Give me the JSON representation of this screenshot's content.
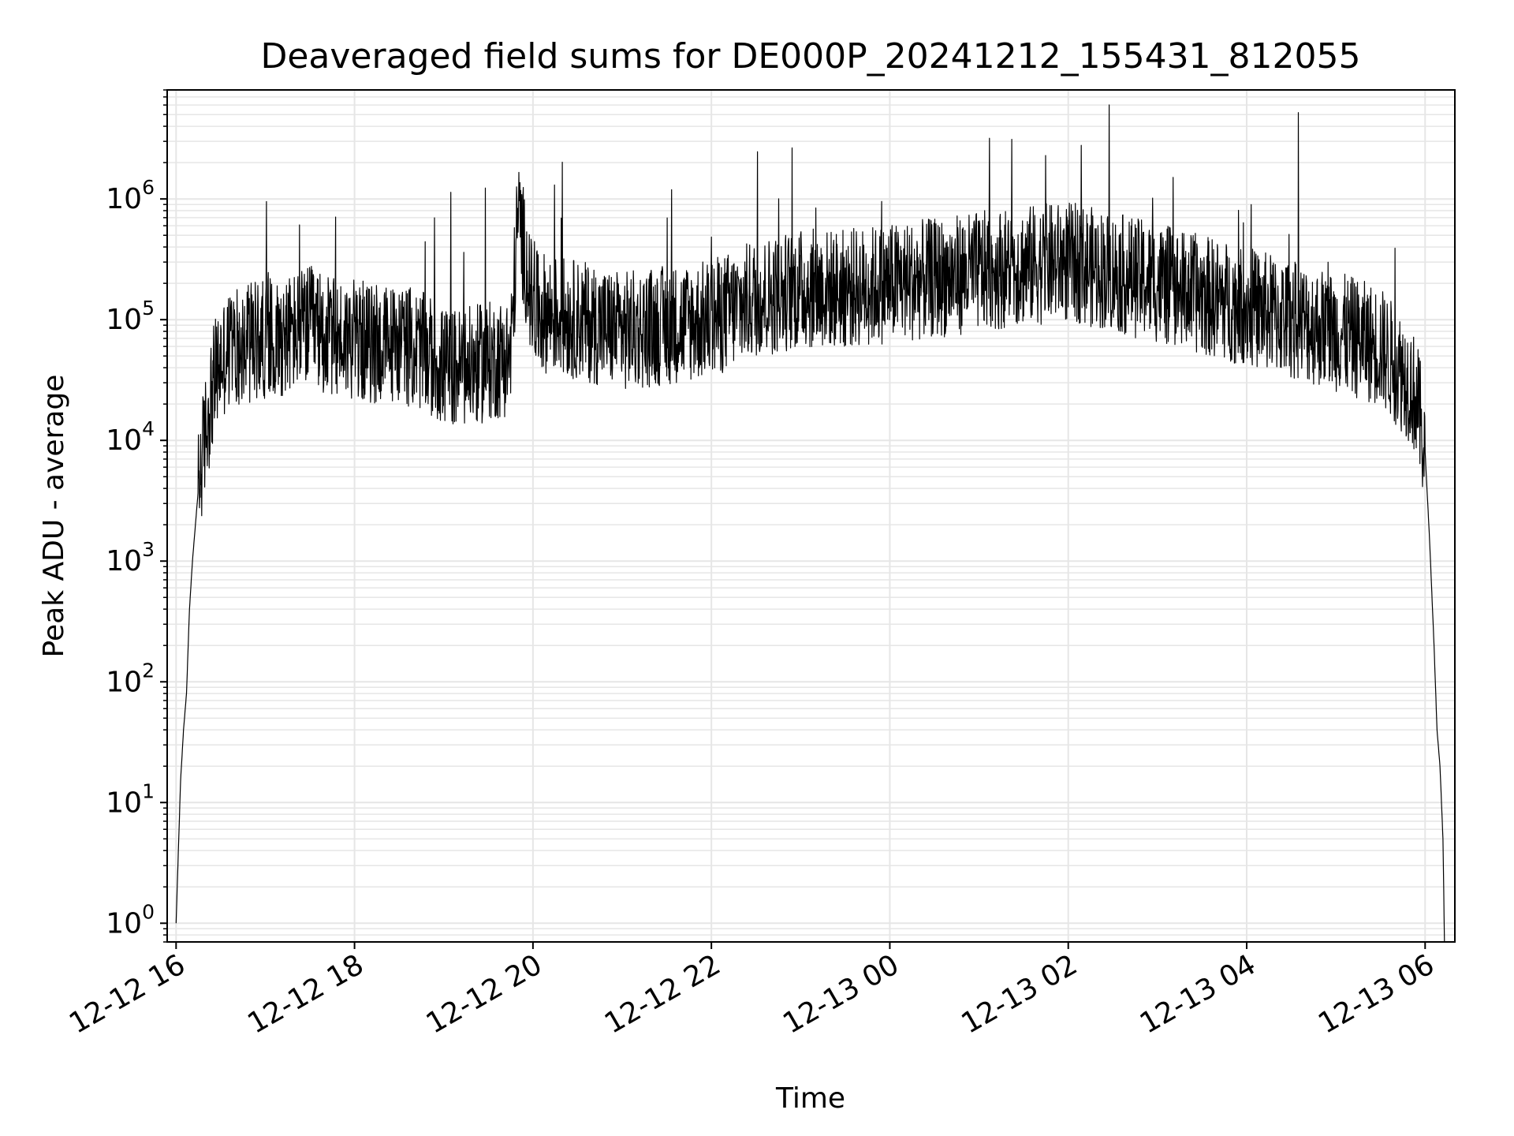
{
  "chart_data": {
    "type": "line",
    "title": "Deaveraged field sums for DE000P_20241212_155431_812055",
    "xlabel": "Time",
    "ylabel": "Peak ADU - average",
    "yscale": "log",
    "ylim": [
      0.7,
      8000000
    ],
    "xlim": [
      "2024-12-12 15:54",
      "2024-12-13 06:20"
    ],
    "grid": true,
    "line_color": "#000000",
    "grid_color": "#e6e6e6",
    "x_ticks": [
      {
        "t": "2024-12-12 16:00",
        "label": "12-12 16"
      },
      {
        "t": "2024-12-12 18:00",
        "label": "12-12 18"
      },
      {
        "t": "2024-12-12 20:00",
        "label": "12-12 20"
      },
      {
        "t": "2024-12-12 22:00",
        "label": "12-12 22"
      },
      {
        "t": "2024-12-13 00:00",
        "label": "12-13 00"
      },
      {
        "t": "2024-12-13 02:00",
        "label": "12-13 02"
      },
      {
        "t": "2024-12-13 04:00",
        "label": "12-13 04"
      },
      {
        "t": "2024-12-13 06:00",
        "label": "12-13 06"
      }
    ],
    "y_ticks": [
      {
        "value": 1,
        "base": "10",
        "exp": "0"
      },
      {
        "value": 10,
        "base": "10",
        "exp": "1"
      },
      {
        "value": 100,
        "base": "10",
        "exp": "2"
      },
      {
        "value": 1000,
        "base": "10",
        "exp": "3"
      },
      {
        "value": 10000,
        "base": "10",
        "exp": "4"
      },
      {
        "value": 100000,
        "base": "10",
        "exp": "5"
      },
      {
        "value": 1000000,
        "base": "10",
        "exp": "6"
      }
    ],
    "series": [
      {
        "x": [
          "2024-12-12 16:00",
          "2024-12-12 16:03",
          "2024-12-12 16:05",
          "2024-12-12 16:07",
          "2024-12-12 16:09",
          "2024-12-12 16:11",
          "2024-12-12 16:13",
          "2024-12-12 16:15",
          "2024-12-12 16:18",
          "2024-12-12 16:21",
          "2024-12-12 16:24",
          "2024-12-12 16:27",
          "2024-12-12 16:30",
          "2024-12-12 16:35",
          "2024-12-12 16:40",
          "2024-12-12 16:50",
          "2024-12-12 17:00",
          "2024-12-12 17:15",
          "2024-12-12 17:30",
          "2024-12-12 17:45",
          "2024-12-12 18:00",
          "2024-12-12 18:15",
          "2024-12-12 18:30",
          "2024-12-12 18:45",
          "2024-12-12 19:00",
          "2024-12-12 19:15",
          "2024-12-12 19:30",
          "2024-12-12 19:45",
          "2024-12-12 19:50",
          "2024-12-12 20:00",
          "2024-12-12 20:30",
          "2024-12-12 21:00",
          "2024-12-12 21:30",
          "2024-12-12 22:00",
          "2024-12-12 22:30",
          "2024-12-12 23:00",
          "2024-12-12 23:30",
          "2024-12-13 00:00",
          "2024-12-13 00:30",
          "2024-12-13 01:00",
          "2024-12-13 01:30",
          "2024-12-13 02:00",
          "2024-12-13 02:30",
          "2024-12-13 03:00",
          "2024-12-13 03:30",
          "2024-12-13 04:00",
          "2024-12-13 04:30",
          "2024-12-13 05:00",
          "2024-12-13 05:30",
          "2024-12-13 05:50",
          "2024-12-13 05:55",
          "2024-12-13 06:00",
          "2024-12-13 06:03",
          "2024-12-13 06:06",
          "2024-12-13 06:08",
          "2024-12-13 06:10",
          "2024-12-13 06:12",
          "2024-12-13 06:13"
        ],
        "y": [
          1,
          15,
          40,
          80,
          400,
          1000,
          2000,
          4000,
          8000,
          15000,
          25000,
          35000,
          45000,
          55000,
          60000,
          65000,
          70000,
          75000,
          90000,
          70000,
          70000,
          60000,
          65000,
          55000,
          40000,
          40000,
          45000,
          50000,
          800000,
          120000,
          100000,
          80000,
          90000,
          100000,
          150000,
          180000,
          180000,
          200000,
          220000,
          250000,
          280000,
          300000,
          250000,
          200000,
          160000,
          130000,
          100000,
          80000,
          60000,
          30000,
          20000,
          8000,
          1500,
          200,
          40,
          20,
          5,
          0.7
        ]
      }
    ]
  }
}
